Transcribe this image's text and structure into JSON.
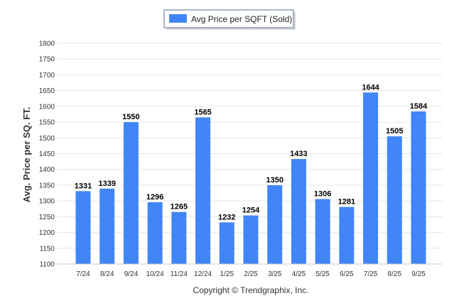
{
  "chart_data": {
    "type": "bar",
    "title": "",
    "xlabel": "",
    "ylabel": "Avg. Price per SQ. FT.",
    "ylim": [
      1100,
      1800
    ],
    "yticks": [
      1100,
      1150,
      1200,
      1250,
      1300,
      1350,
      1400,
      1450,
      1500,
      1550,
      1600,
      1650,
      1700,
      1750,
      1800
    ],
    "categories": [
      "7/24",
      "8/24",
      "9/24",
      "10/24",
      "11/24",
      "12/24",
      "1/25",
      "2/25",
      "3/25",
      "4/25",
      "5/25",
      "6/25",
      "7/25",
      "8/25",
      "9/25"
    ],
    "series": [
      {
        "name": "Avg Price per SQFT (Sold)",
        "color": "#4285f4",
        "values": [
          1331,
          1339,
          1550,
          1296,
          1265,
          1565,
          1232,
          1254,
          1350,
          1433,
          1306,
          1281,
          1644,
          1505,
          1584
        ]
      }
    ],
    "legend": "top-center",
    "grid": true
  },
  "legend": {
    "label": "Avg Price per SQFT (Sold)",
    "swatch_color": "#4285f4"
  },
  "footer": {
    "copyright": "Copyright © Trendgraphix, Inc."
  }
}
